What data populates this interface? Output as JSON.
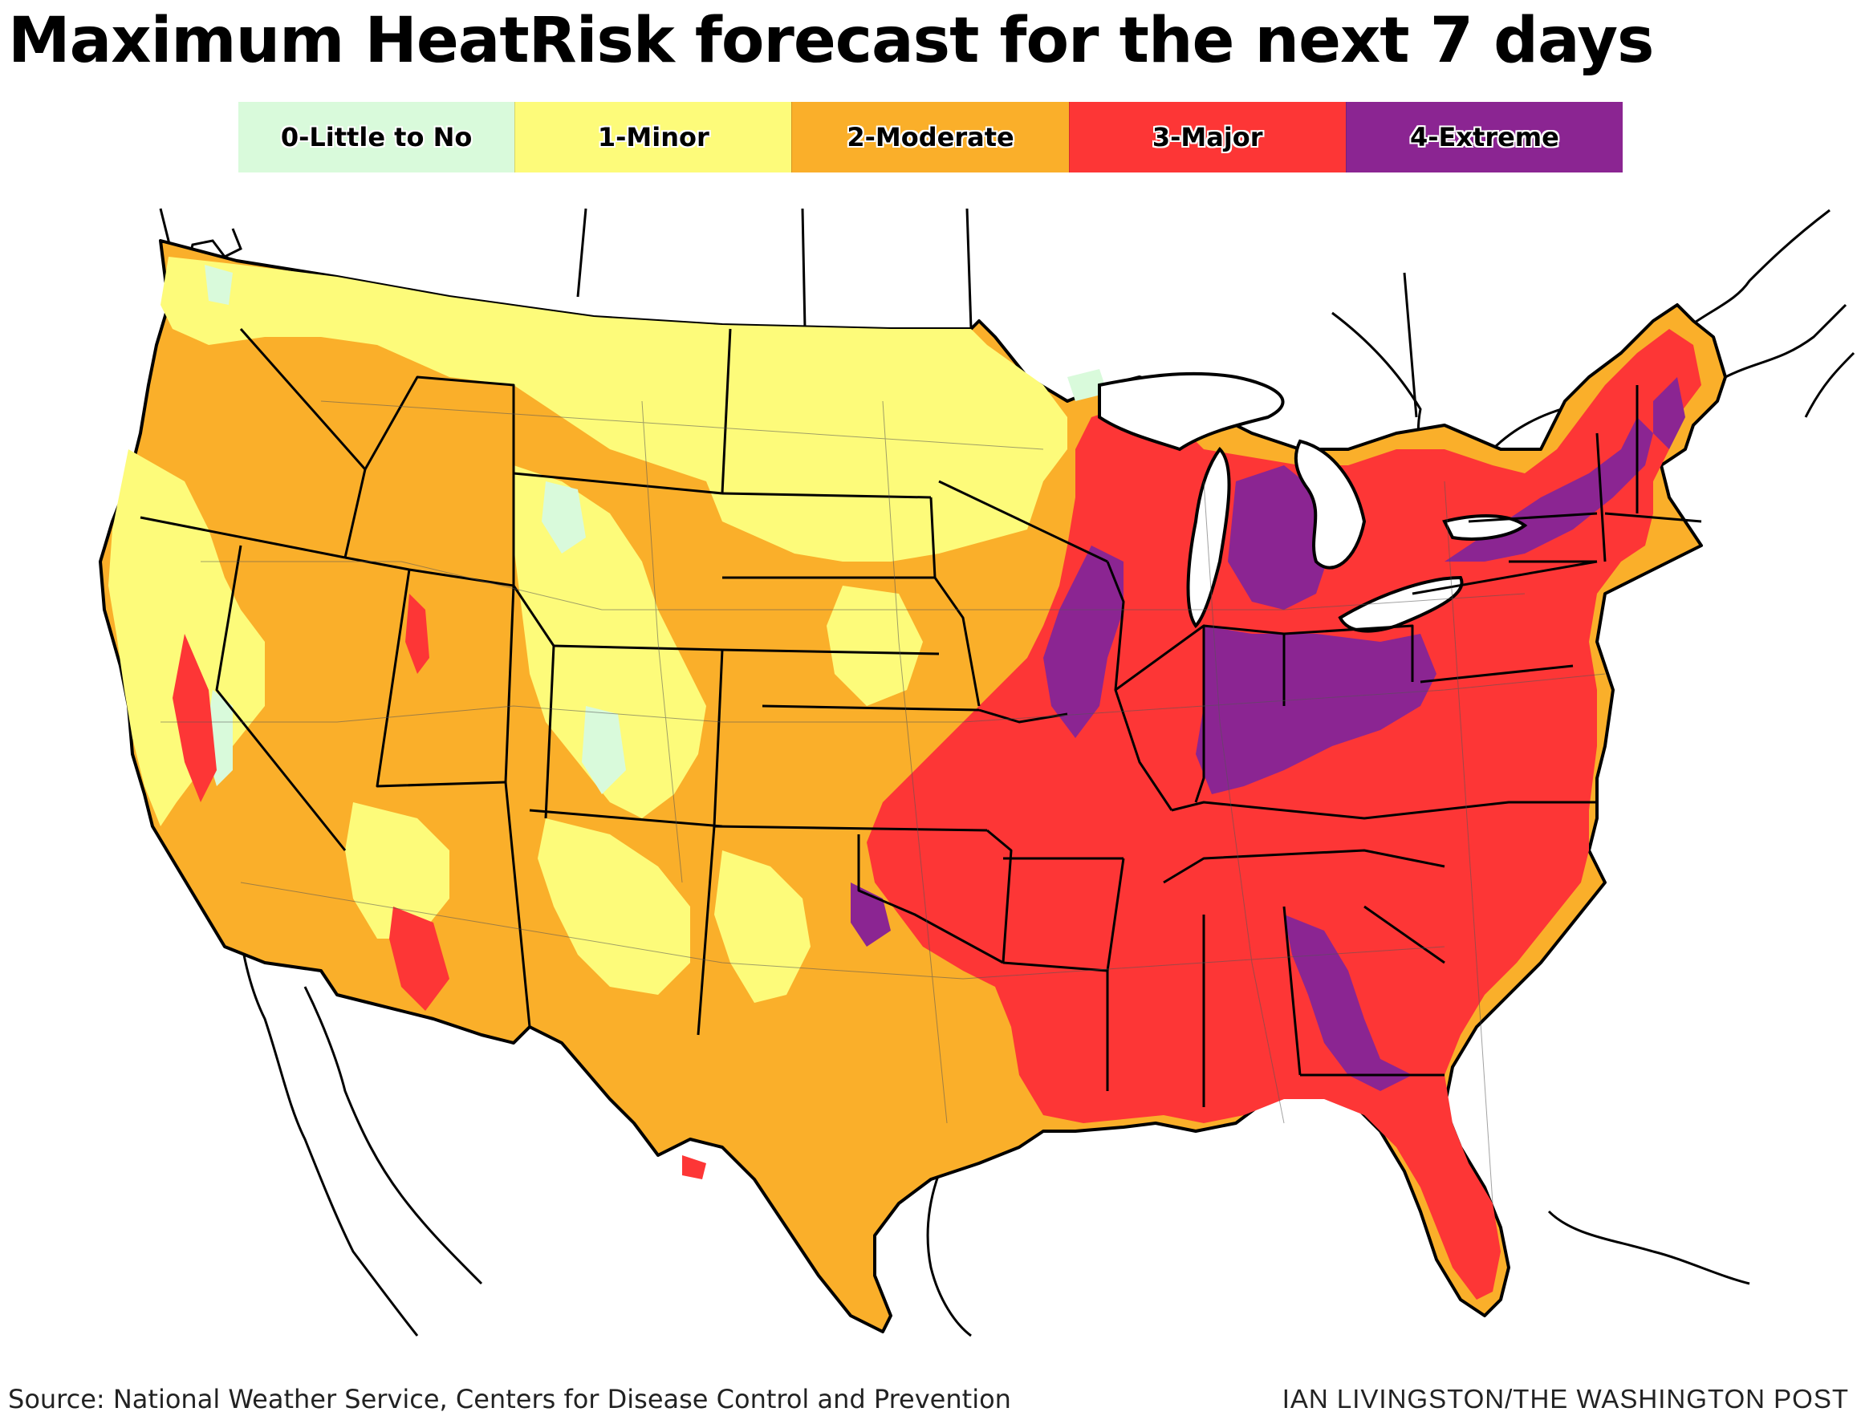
{
  "title": "Maximum HeatRisk forecast for the next 7 days",
  "legend": [
    {
      "label": "0-Little to No",
      "color": "#d9fadb"
    },
    {
      "label": "1-Minor",
      "color": "#fdfb7a"
    },
    {
      "label": "2-Moderate",
      "color": "#faaf2a"
    },
    {
      "label": "3-Major",
      "color": "#fd3636"
    },
    {
      "label": "4-Extreme",
      "color": "#8b2592"
    }
  ],
  "map": {
    "region": "Contiguous United States",
    "colors": {
      "land_outside": "#ffffff",
      "borders": "#000000",
      "water": "#ffffff"
    }
  },
  "footer": {
    "source": "Source: National Weather Service, Centers for Disease Control and Prevention",
    "credit": "IAN LIVINGSTON/THE WASHINGTON POST"
  }
}
